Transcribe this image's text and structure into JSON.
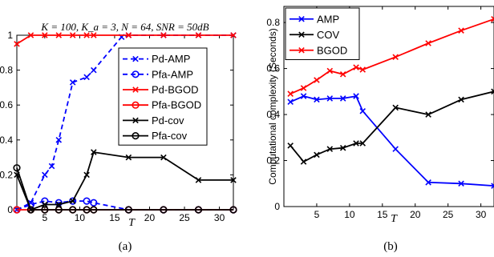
{
  "chart_data": [
    {
      "type": "line",
      "panel_caption": "(a)",
      "title": "K = 100, K_a = 3, N = 64, SNR = 50dB",
      "xlabel": "T",
      "ylabel": "",
      "xlim": [
        1,
        32
      ],
      "ylim": [
        0,
        1
      ],
      "xticks": [
        "5",
        "10",
        "15",
        "20",
        "25",
        "30"
      ],
      "yticks": [
        "0",
        "0.2",
        "0.4",
        "0.6",
        "0.8",
        "1"
      ],
      "grid": false,
      "legend_position": "right",
      "series": [
        {
          "name": "Pd-AMP",
          "color": "#0000ff",
          "dash": "dashed",
          "marker": "x",
          "points": [
            [
              1,
              0.0
            ],
            [
              3,
              0.04
            ],
            [
              5,
              0.2
            ],
            [
              6,
              0.25
            ],
            [
              7,
              0.4
            ],
            [
              9,
              0.73
            ],
            [
              11,
              0.76
            ],
            [
              12,
              0.8
            ],
            [
              16,
              0.99
            ],
            [
              17,
              1.0
            ],
            [
              22,
              1.0
            ],
            [
              27,
              1.0
            ],
            [
              32,
              1.0
            ]
          ]
        },
        {
          "name": "Pfa-AMP",
          "color": "#0000ff",
          "dash": "dashed",
          "marker": "o",
          "points": [
            [
              1,
              0.0
            ],
            [
              3,
              0.03
            ],
            [
              5,
              0.05
            ],
            [
              7,
              0.04
            ],
            [
              9,
              0.05
            ],
            [
              11,
              0.05
            ],
            [
              12,
              0.04
            ],
            [
              17,
              0.0
            ],
            [
              22,
              0.0
            ],
            [
              27,
              0.0
            ],
            [
              32,
              0.0
            ]
          ]
        },
        {
          "name": "Pd-BGOD",
          "color": "#ff0000",
          "dash": "solid",
          "marker": "x",
          "points": [
            [
              1,
              0.95
            ],
            [
              3,
              1.0
            ],
            [
              5,
              1.0
            ],
            [
              7,
              1.0
            ],
            [
              9,
              1.0
            ],
            [
              11,
              1.0
            ],
            [
              12,
              1.0
            ],
            [
              17,
              1.0
            ],
            [
              22,
              1.0
            ],
            [
              27,
              1.0
            ],
            [
              32,
              1.0
            ]
          ]
        },
        {
          "name": "Pfa-BGOD",
          "color": "#ff0000",
          "dash": "solid",
          "marker": "o",
          "points": [
            [
              1,
              0.0
            ],
            [
              3,
              0.0
            ],
            [
              5,
              0.0
            ],
            [
              7,
              0.0
            ],
            [
              9,
              0.0
            ],
            [
              11,
              0.0
            ],
            [
              12,
              0.0
            ],
            [
              17,
              0.0
            ],
            [
              22,
              0.0
            ],
            [
              27,
              0.0
            ],
            [
              32,
              0.0
            ]
          ]
        },
        {
          "name": "Pd-cov",
          "color": "#000000",
          "dash": "solid",
          "marker": "x",
          "points": [
            [
              1,
              0.2
            ],
            [
              3,
              0.0
            ],
            [
              5,
              0.03
            ],
            [
              7,
              0.03
            ],
            [
              9,
              0.05
            ],
            [
              11,
              0.2
            ],
            [
              12,
              0.33
            ],
            [
              17,
              0.3
            ],
            [
              22,
              0.3
            ],
            [
              27,
              0.17
            ],
            [
              32,
              0.17
            ]
          ]
        },
        {
          "name": "Pfa-cov",
          "color": "#000000",
          "dash": "solid",
          "marker": "o",
          "points": [
            [
              1,
              0.24
            ],
            [
              3,
              0.0
            ],
            [
              5,
              0.0
            ],
            [
              7,
              0.0
            ],
            [
              9,
              0.0
            ],
            [
              11,
              0.0
            ],
            [
              12,
              0.0
            ],
            [
              17,
              0.0
            ],
            [
              22,
              0.0
            ],
            [
              27,
              0.0
            ],
            [
              32,
              0.0
            ]
          ]
        }
      ]
    },
    {
      "type": "line",
      "panel_caption": "(b)",
      "title": "",
      "xlabel": "T",
      "ylabel": "Computational complexity (Seconds)",
      "xlim": [
        0,
        32
      ],
      "ylim": [
        0,
        0.87
      ],
      "xticks": [
        "5",
        "10",
        "15",
        "20",
        "25",
        "30"
      ],
      "yticks": [
        "0",
        "0.2",
        "0.4",
        "0.6",
        "0.8"
      ],
      "grid": false,
      "legend_position": "top-left",
      "series": [
        {
          "name": "AMP",
          "color": "#0000ff",
          "dash": "solid",
          "marker": "x",
          "points": [
            [
              1,
              0.455
            ],
            [
              3,
              0.48
            ],
            [
              5,
              0.465
            ],
            [
              7,
              0.47
            ],
            [
              9,
              0.47
            ],
            [
              11,
              0.48
            ],
            [
              12,
              0.415
            ],
            [
              17,
              0.25
            ],
            [
              22,
              0.105
            ],
            [
              27,
              0.1
            ],
            [
              32,
              0.09
            ]
          ]
        },
        {
          "name": "COV",
          "color": "#000000",
          "dash": "solid",
          "marker": "x",
          "points": [
            [
              1,
              0.265
            ],
            [
              3,
              0.195
            ],
            [
              5,
              0.225
            ],
            [
              7,
              0.25
            ],
            [
              9,
              0.255
            ],
            [
              11,
              0.275
            ],
            [
              12,
              0.275
            ],
            [
              17,
              0.43
            ],
            [
              22,
              0.4
            ],
            [
              27,
              0.465
            ],
            [
              32,
              0.5
            ]
          ]
        },
        {
          "name": "BGOD",
          "color": "#ff0000",
          "dash": "solid",
          "marker": "x",
          "points": [
            [
              1,
              0.49
            ],
            [
              3,
              0.515
            ],
            [
              5,
              0.55
            ],
            [
              7,
              0.59
            ],
            [
              9,
              0.575
            ],
            [
              11,
              0.605
            ],
            [
              12,
              0.595
            ],
            [
              17,
              0.65
            ],
            [
              22,
              0.71
            ],
            [
              27,
              0.765
            ],
            [
              32,
              0.815
            ]
          ]
        }
      ]
    }
  ]
}
